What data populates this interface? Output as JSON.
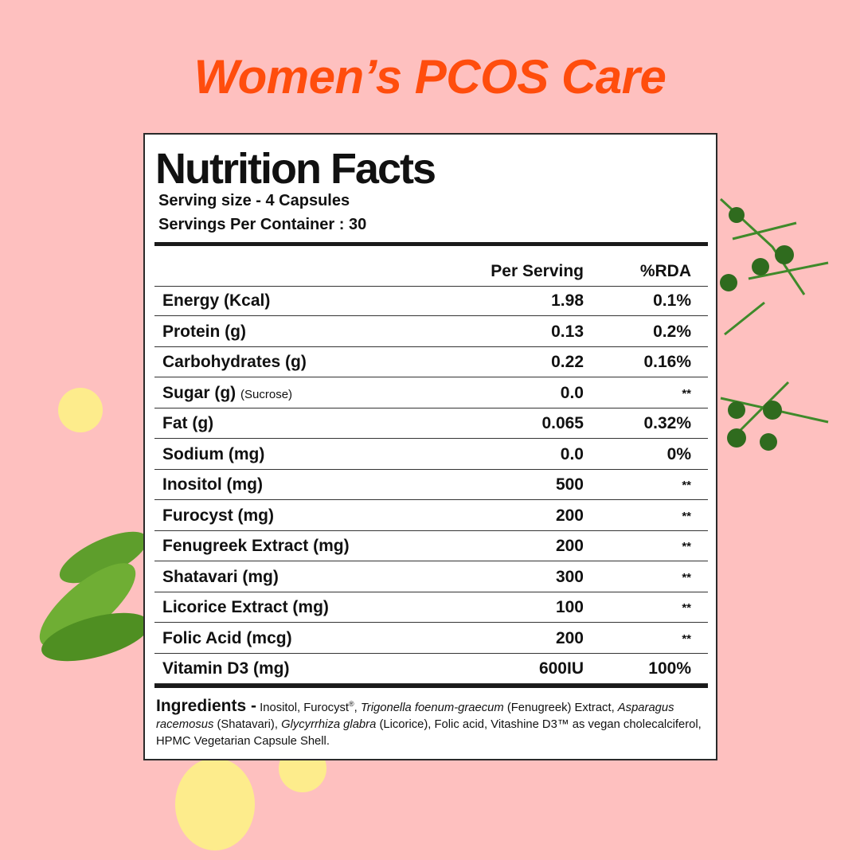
{
  "header": {
    "title": "Women’s PCOS Care"
  },
  "label": {
    "title": "Nutrition Facts",
    "serving_size": "Serving size - 4 Capsules",
    "servings_per_container": "Servings Per Container : 30",
    "columns": [
      "Per Serving",
      "%RDA"
    ],
    "rows": [
      {
        "nutrient": "Energy (Kcal)",
        "per_serving": "1.98",
        "rda": "0.1%"
      },
      {
        "nutrient": "Protein (g)",
        "per_serving": "0.13",
        "rda": "0.2%"
      },
      {
        "nutrient": "Carbohydrates (g)",
        "per_serving": "0.22",
        "rda": "0.16%"
      },
      {
        "nutrient": "Sugar (g)",
        "note": "(Sucrose)",
        "per_serving": "0.0",
        "rda": "**"
      },
      {
        "nutrient": "Fat (g)",
        "per_serving": "0.065",
        "rda": "0.32%"
      },
      {
        "nutrient": "Sodium (mg)",
        "per_serving": "0.0",
        "rda": "0%"
      },
      {
        "nutrient": "Inositol (mg)",
        "per_serving": "500",
        "rda": "**"
      },
      {
        "nutrient": "Furocyst (mg)",
        "per_serving": "200",
        "rda": "**"
      },
      {
        "nutrient": "Fenugreek Extract (mg)",
        "per_serving": "200",
        "rda": "**"
      },
      {
        "nutrient": "Shatavari (mg)",
        "per_serving": "300",
        "rda": "**"
      },
      {
        "nutrient": "Licorice Extract (mg)",
        "per_serving": "100",
        "rda": "**"
      },
      {
        "nutrient": "Folic Acid (mcg)",
        "per_serving": "200",
        "rda": "**"
      },
      {
        "nutrient": "Vitamin D3 (mg)",
        "per_serving": "600IU",
        "rda": "100%"
      }
    ],
    "ingredients": {
      "heading": "Ingredients -",
      "segments": [
        {
          "text": "Inositol, Furocyst",
          "style": "normal"
        },
        {
          "text": "®",
          "style": "sup"
        },
        {
          "text": ", ",
          "style": "normal"
        },
        {
          "text": "Trigonella foenum-graecum",
          "style": "italic"
        },
        {
          "text": " (Fenugreek) Extract, ",
          "style": "normal"
        },
        {
          "text": "Asparagus racemosus",
          "style": "italic"
        },
        {
          "text": " (Shatavari), ",
          "style": "normal"
        },
        {
          "text": "Glycyrrhiza glabra",
          "style": "italic"
        },
        {
          "text": " (Licorice), Folic acid, Vitashine D3™ as vegan cholecalciferol, HPMC Vegetarian Capsule Shell.",
          "style": "normal"
        }
      ]
    }
  }
}
